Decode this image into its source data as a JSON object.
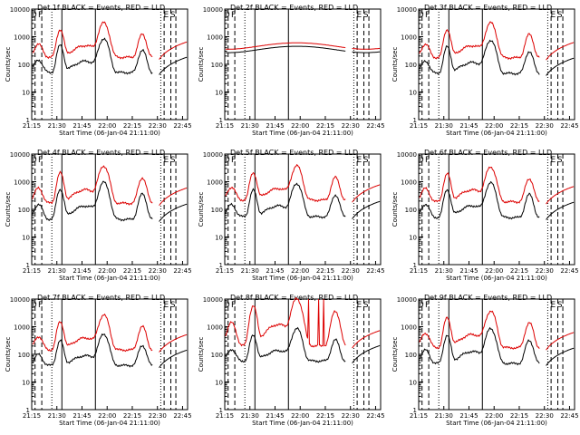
{
  "chart_data": [
    {
      "type": "line",
      "title": "Det 1f BLACK = Events, RED = LLD",
      "xlabel": "Start Time (06-Jan-04 21:11:00)",
      "ylabel": "Counts/sec",
      "x_ticks": [
        "21:15",
        "21:30",
        "21:45",
        "22:00",
        "22:15",
        "22:30",
        "22:45"
      ],
      "y_ticks": [
        "1",
        "10",
        "100",
        "1000",
        "10000"
      ],
      "ylim": [
        1,
        10000
      ],
      "scale_y": "log",
      "marker_labels": [
        "D",
        "F",
        "E",
        "S"
      ],
      "profile": "flare",
      "series": [
        {
          "name": "Events",
          "color": "#000000",
          "base": 70,
          "peak": 800
        },
        {
          "name": "LLD",
          "color": "#dd0000",
          "base": 250,
          "peak": 3000
        }
      ]
    },
    {
      "type": "line",
      "title": "Det 2f BLACK = Events, RED = LLD",
      "xlabel": "Start Time (06-Jan-04 21:11:00)",
      "ylabel": "Counts/sec",
      "x_ticks": [
        "21:15",
        "21:30",
        "21:45",
        "22:00",
        "22:15",
        "22:30",
        "22:45"
      ],
      "y_ticks": [
        "1",
        "10",
        "100",
        "1000",
        "10000"
      ],
      "ylim": [
        1,
        10000
      ],
      "scale_y": "log",
      "marker_labels": [
        "D",
        "F",
        "E",
        "S"
      ],
      "profile": "smooth",
      "series": [
        {
          "name": "Events",
          "color": "#000000",
          "base": 300,
          "peak": 450
        },
        {
          "name": "LLD",
          "color": "#dd0000",
          "base": 400,
          "peak": 600
        }
      ]
    },
    {
      "type": "line",
      "title": "Det 3f BLACK = Events, RED = LLD",
      "xlabel": "Start Time (06-Jan-04 21:11:00)",
      "ylabel": "Counts/sec",
      "x_ticks": [
        "21:15",
        "21:30",
        "21:45",
        "22:00",
        "22:15",
        "22:30",
        "22:45"
      ],
      "y_ticks": [
        "1",
        "10",
        "100",
        "1000",
        "10000"
      ],
      "ylim": [
        1,
        10000
      ],
      "scale_y": "log",
      "marker_labels": [
        "D",
        "F",
        "E",
        "S"
      ],
      "profile": "flare",
      "series": [
        {
          "name": "Events",
          "color": "#000000",
          "base": 65,
          "peak": 700
        },
        {
          "name": "LLD",
          "color": "#dd0000",
          "base": 240,
          "peak": 3000
        }
      ]
    },
    {
      "type": "line",
      "title": "Det 4f BLACK = Events, RED = LLD",
      "xlabel": "Start Time (06-Jan-04 21:11:00)",
      "ylabel": "Counts/sec",
      "x_ticks": [
        "21:15",
        "21:30",
        "21:45",
        "22:00",
        "22:15",
        "22:30",
        "22:45"
      ],
      "y_ticks": [
        "1",
        "10",
        "100",
        "1000",
        "10000"
      ],
      "ylim": [
        1,
        10000
      ],
      "scale_y": "log",
      "marker_labels": [
        "D",
        "F",
        "E",
        "S"
      ],
      "profile": "flare",
      "series": [
        {
          "name": "Events",
          "color": "#000000",
          "base": 60,
          "peak": 900
        },
        {
          "name": "LLD",
          "color": "#dd0000",
          "base": 230,
          "peak": 3500
        }
      ]
    },
    {
      "type": "line",
      "title": "Det 5f BLACK = Events, RED = LLD",
      "xlabel": "Start Time (06-Jan-04 21:11:00)",
      "ylabel": "Counts/sec",
      "x_ticks": [
        "21:15",
        "21:30",
        "21:45",
        "22:00",
        "22:15",
        "22:30",
        "22:45"
      ],
      "y_ticks": [
        "1",
        "10",
        "100",
        "1000",
        "10000"
      ],
      "ylim": [
        1,
        10000
      ],
      "scale_y": "log",
      "marker_labels": [
        "D",
        "F",
        "E",
        "S"
      ],
      "profile": "flare",
      "series": [
        {
          "name": "Events",
          "color": "#000000",
          "base": 75,
          "peak": 800
        },
        {
          "name": "LLD",
          "color": "#dd0000",
          "base": 300,
          "peak": 3500
        }
      ]
    },
    {
      "type": "line",
      "title": "Det 6f BLACK = Events, RED = LLD",
      "xlabel": "Start Time (06-Jan-04 21:11:00)",
      "ylabel": "Counts/sec",
      "x_ticks": [
        "21:15",
        "21:30",
        "21:45",
        "22:00",
        "22:15",
        "22:30",
        "22:45"
      ],
      "y_ticks": [
        "1",
        "10",
        "100",
        "1000",
        "10000"
      ],
      "ylim": [
        1,
        10000
      ],
      "scale_y": "log",
      "marker_labels": [
        "D",
        "F",
        "E",
        "S"
      ],
      "profile": "flare",
      "series": [
        {
          "name": "Events",
          "color": "#000000",
          "base": 70,
          "peak": 850
        },
        {
          "name": "LLD",
          "color": "#dd0000",
          "base": 260,
          "peak": 3200
        }
      ]
    },
    {
      "type": "line",
      "title": "Det 7f BLACK = Events, RED = LLD",
      "xlabel": "Start Time (06-Jan-04 21:11:00)",
      "ylabel": "Counts/sec",
      "x_ticks": [
        "21:15",
        "21:30",
        "21:45",
        "22:00",
        "22:15",
        "22:30",
        "22:45"
      ],
      "y_ticks": [
        "1",
        "10",
        "100",
        "1000",
        "10000"
      ],
      "ylim": [
        1,
        10000
      ],
      "scale_y": "log",
      "marker_labels": [
        "D",
        "F",
        "E",
        "S"
      ],
      "profile": "flare",
      "series": [
        {
          "name": "Events",
          "color": "#000000",
          "base": 55,
          "peak": 500
        },
        {
          "name": "LLD",
          "color": "#dd0000",
          "base": 200,
          "peak": 2500
        }
      ]
    },
    {
      "type": "line",
      "title": "Det 8f BLACK = Events, RED = LLD",
      "xlabel": "Start Time (06-Jan-04 21:11:00)",
      "ylabel": "Counts/sec",
      "x_ticks": [
        "21:15",
        "21:30",
        "21:45",
        "22:00",
        "22:15",
        "22:30",
        "22:45"
      ],
      "y_ticks": [
        "1",
        "10",
        "100",
        "1000",
        "10000"
      ],
      "ylim": [
        1,
        10000
      ],
      "scale_y": "log",
      "marker_labels": [
        "D",
        "F",
        "E",
        "S"
      ],
      "profile": "spiky",
      "series": [
        {
          "name": "Events",
          "color": "#000000",
          "base": 80,
          "peak": 800
        },
        {
          "name": "LLD",
          "color": "#dd0000",
          "base": 280,
          "peak": 10000
        }
      ]
    },
    {
      "type": "line",
      "title": "Det 9f BLACK = Events, RED = LLD",
      "xlabel": "Start Time (06-Jan-04 21:11:00)",
      "ylabel": "Counts/sec",
      "x_ticks": [
        "21:15",
        "21:30",
        "21:45",
        "22:00",
        "22:15",
        "22:30",
        "22:45"
      ],
      "y_ticks": [
        "1",
        "10",
        "100",
        "1000",
        "10000"
      ],
      "ylim": [
        1,
        10000
      ],
      "scale_y": "log",
      "marker_labels": [
        "D",
        "F",
        "E",
        "S"
      ],
      "profile": "flare",
      "series": [
        {
          "name": "Events",
          "color": "#000000",
          "base": 65,
          "peak": 800
        },
        {
          "name": "LLD",
          "color": "#dd0000",
          "base": 240,
          "peak": 3500
        }
      ]
    }
  ]
}
